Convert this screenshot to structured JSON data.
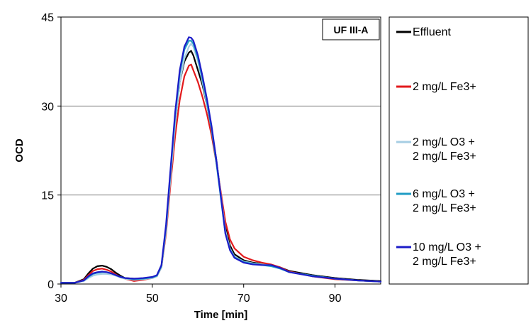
{
  "chart_data": {
    "type": "line",
    "panel_label": "UF III-A",
    "xlabel": "Time [min]",
    "ylabel": "OCD",
    "xlim": [
      30,
      100
    ],
    "ylim": [
      0,
      45
    ],
    "xticks": [
      30,
      50,
      70,
      90
    ],
    "yticks": [
      0,
      15,
      30,
      45
    ],
    "grid": "horizontal",
    "legend_position": "right",
    "series": [
      {
        "name": "Effluent",
        "legend_lines": [
          "Effluent"
        ],
        "color": "#000000",
        "x": [
          30,
          33,
          35,
          36,
          37,
          38,
          39,
          40,
          41,
          42,
          43,
          44,
          46,
          48,
          50,
          51,
          52,
          53,
          54,
          55,
          56,
          57,
          58,
          58.5,
          59,
          60,
          61,
          62,
          63,
          64,
          65,
          66,
          67,
          68,
          70,
          72,
          74,
          76,
          78,
          80,
          85,
          90,
          95,
          100
        ],
        "y": [
          0.2,
          0.2,
          0.8,
          1.8,
          2.6,
          3.0,
          3.1,
          2.9,
          2.5,
          1.9,
          1.4,
          1.0,
          0.9,
          0.9,
          1.1,
          1.4,
          3.0,
          9.0,
          18.0,
          27.0,
          34.0,
          37.5,
          39.0,
          39.3,
          38.5,
          36.0,
          33.5,
          30.0,
          26.0,
          21.0,
          15.0,
          9.5,
          6.5,
          5.0,
          4.0,
          3.6,
          3.4,
          3.2,
          2.8,
          2.2,
          1.5,
          1.0,
          0.7,
          0.5
        ]
      },
      {
        "name": "2 mg/L Fe3+",
        "legend_lines": [
          "2 mg/L Fe3+"
        ],
        "color": "#e31a1c",
        "x": [
          30,
          33,
          35,
          36,
          37,
          38,
          39,
          40,
          41,
          42,
          43,
          44,
          46,
          48,
          50,
          51,
          52,
          53,
          54,
          55,
          56,
          57,
          58,
          58.5,
          59,
          60,
          61,
          62,
          63,
          64,
          65,
          66,
          67,
          68,
          70,
          72,
          74,
          76,
          78,
          80,
          85,
          90,
          95,
          100
        ],
        "y": [
          0.2,
          0.2,
          0.7,
          1.5,
          2.2,
          2.5,
          2.6,
          2.4,
          2.1,
          1.6,
          1.2,
          0.9,
          0.5,
          0.7,
          1.0,
          1.3,
          2.8,
          8.5,
          17.0,
          25.0,
          31.0,
          35.0,
          36.8,
          37.0,
          36.0,
          34.0,
          31.5,
          28.5,
          25.0,
          20.5,
          15.5,
          10.5,
          7.5,
          6.0,
          4.6,
          4.0,
          3.6,
          3.3,
          2.8,
          2.1,
          1.3,
          0.8,
          0.6,
          0.4
        ]
      },
      {
        "name": "2 mg/L O3 + 2 mg/L Fe3+",
        "legend_lines": [
          "2 mg/L O3 +",
          "2 mg/L Fe3+"
        ],
        "color": "#a6cee3",
        "x": [
          30,
          33,
          35,
          36,
          37,
          38,
          39,
          40,
          41,
          42,
          43,
          44,
          46,
          48,
          50,
          51,
          52,
          53,
          54,
          55,
          56,
          57,
          58,
          58.5,
          59,
          60,
          61,
          62,
          63,
          64,
          65,
          66,
          67,
          68,
          70,
          72,
          74,
          76,
          78,
          80,
          85,
          90,
          95,
          100
        ],
        "y": [
          0.2,
          0.2,
          0.5,
          1.0,
          1.4,
          1.6,
          1.7,
          1.7,
          1.6,
          1.4,
          1.1,
          0.9,
          0.7,
          0.8,
          1.0,
          1.3,
          2.8,
          9.0,
          18.0,
          27.0,
          34.0,
          38.0,
          40.0,
          40.5,
          40.0,
          37.5,
          34.0,
          30.0,
          26.0,
          21.0,
          15.0,
          9.0,
          6.0,
          4.6,
          3.8,
          3.5,
          3.3,
          3.1,
          2.6,
          2.0,
          1.4,
          0.9,
          0.6,
          0.4
        ]
      },
      {
        "name": "6 mg/L O3 + 2 mg/L Fe3+",
        "legend_lines": [
          "6 mg/L O3 +",
          "2 mg/L Fe3+"
        ],
        "color": "#1f9cc4",
        "x": [
          30,
          33,
          35,
          36,
          37,
          38,
          39,
          40,
          41,
          42,
          43,
          44,
          46,
          48,
          50,
          51,
          52,
          53,
          54,
          55,
          56,
          57,
          58,
          58.5,
          59,
          60,
          61,
          62,
          63,
          64,
          65,
          66,
          67,
          68,
          70,
          72,
          74,
          76,
          78,
          80,
          85,
          90,
          95,
          100
        ],
        "y": [
          0.2,
          0.2,
          0.6,
          1.2,
          1.7,
          1.9,
          2.0,
          2.0,
          1.8,
          1.5,
          1.2,
          1.0,
          0.8,
          0.9,
          1.1,
          1.4,
          3.0,
          9.5,
          19.0,
          28.5,
          35.5,
          39.5,
          41.0,
          41.0,
          40.5,
          38.0,
          34.5,
          30.5,
          26.0,
          20.5,
          14.5,
          8.5,
          5.8,
          4.5,
          3.7,
          3.4,
          3.2,
          3.0,
          2.6,
          2.0,
          1.4,
          0.9,
          0.6,
          0.4
        ]
      },
      {
        "name": "10 mg/L O3 + 2 mg/L Fe3+",
        "legend_lines": [
          "10 mg/L O3 +",
          "2 mg/L Fe3+"
        ],
        "color": "#1c1cc8",
        "x": [
          30,
          33,
          35,
          36,
          37,
          38,
          39,
          40,
          41,
          42,
          43,
          44,
          46,
          48,
          50,
          51,
          52,
          53,
          54,
          55,
          56,
          57,
          58,
          58.5,
          59,
          60,
          61,
          62,
          63,
          64,
          65,
          66,
          67,
          68,
          70,
          72,
          74,
          76,
          78,
          80,
          85,
          90,
          95,
          100
        ],
        "y": [
          0.2,
          0.2,
          0.6,
          1.3,
          1.8,
          2.0,
          2.1,
          2.0,
          1.8,
          1.5,
          1.2,
          1.0,
          0.9,
          1.0,
          1.2,
          1.5,
          3.2,
          10.0,
          19.5,
          29.0,
          36.0,
          40.0,
          41.6,
          41.5,
          41.0,
          38.5,
          35.0,
          31.0,
          26.5,
          21.0,
          14.8,
          8.5,
          5.7,
          4.4,
          3.6,
          3.3,
          3.2,
          3.2,
          2.7,
          2.0,
          1.3,
          0.9,
          0.6,
          0.4
        ]
      }
    ]
  }
}
